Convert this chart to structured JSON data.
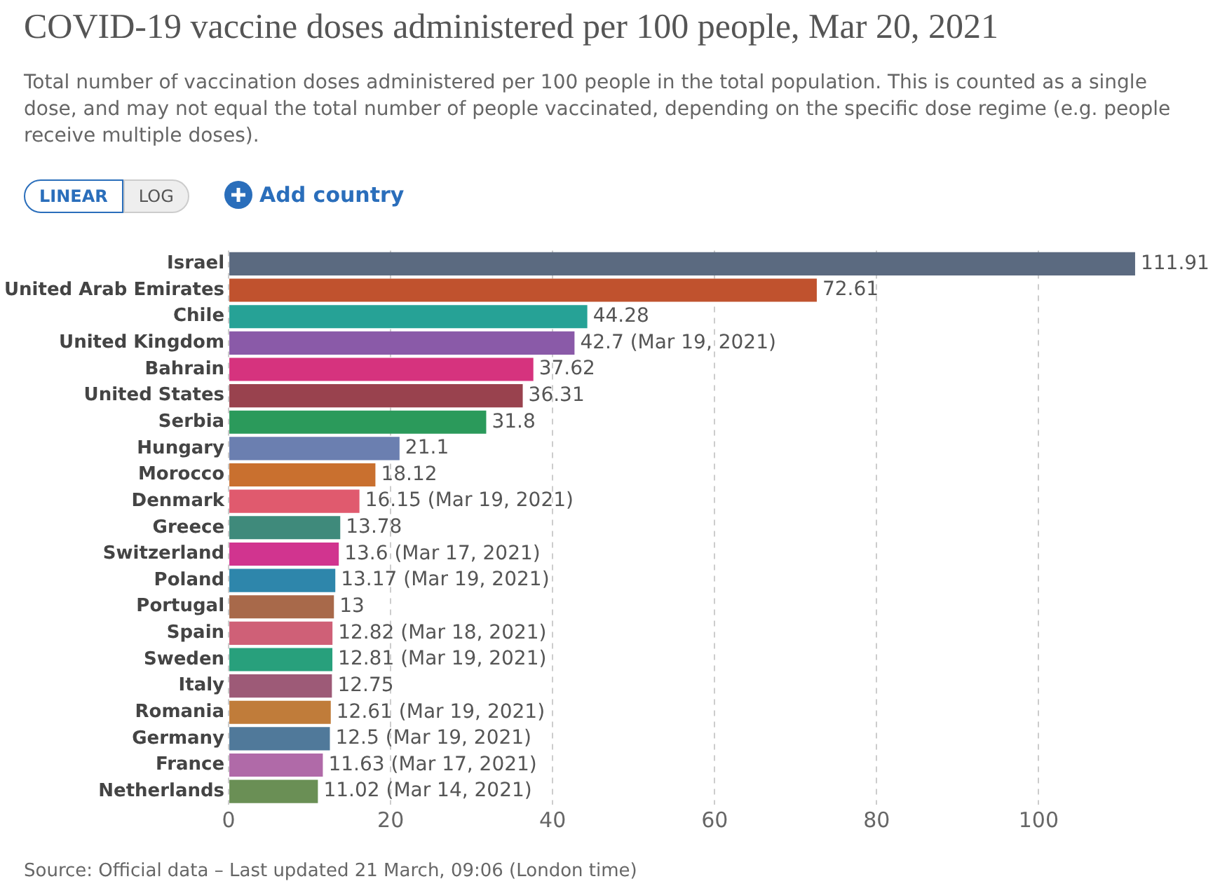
{
  "chart_data": {
    "type": "bar",
    "orientation": "horizontal",
    "title": "COVID-19 vaccine doses administered per 100 people, Mar 20, 2021",
    "subtitle": "Total number of vaccination doses administered per 100 people in the total population. This is counted as a single dose, and may not equal the total number of people vaccinated, depending on the specific dose regime (e.g. people receive multiple doses).",
    "categories": [
      "Israel",
      "United Arab Emirates",
      "Chile",
      "United Kingdom",
      "Bahrain",
      "United States",
      "Serbia",
      "Hungary",
      "Morocco",
      "Denmark",
      "Greece",
      "Switzerland",
      "Poland",
      "Portugal",
      "Spain",
      "Sweden",
      "Italy",
      "Romania",
      "Germany",
      "France",
      "Netherlands"
    ],
    "values": [
      111.91,
      72.61,
      44.28,
      42.7,
      37.62,
      36.31,
      31.8,
      21.1,
      18.12,
      16.15,
      13.78,
      13.6,
      13.17,
      13,
      12.82,
      12.81,
      12.75,
      12.61,
      12.5,
      11.63,
      11.02
    ],
    "value_labels": [
      "111.91",
      "72.61",
      "44.28",
      "42.7 (Mar 19, 2021)",
      "37.62",
      "36.31",
      "31.8",
      "21.1",
      "18.12",
      "16.15 (Mar 19, 2021)",
      "13.78",
      "13.6 (Mar 17, 2021)",
      "13.17 (Mar 19, 2021)",
      "13",
      "12.82 (Mar 18, 2021)",
      "12.81 (Mar 19, 2021)",
      "12.75",
      "12.61 (Mar 19, 2021)",
      "12.5 (Mar 19, 2021)",
      "11.63 (Mar 17, 2021)",
      "11.02 (Mar 14, 2021)"
    ],
    "colors": [
      "#5b6a80",
      "#c0522e",
      "#26a296",
      "#8a5aa8",
      "#d6337e",
      "#99424e",
      "#2b9a5b",
      "#6b7fb0",
      "#c9702f",
      "#e05a6e",
      "#3f8a7b",
      "#d1348f",
      "#2e86ab",
      "#a8694a",
      "#cf6077",
      "#28a07c",
      "#9d5a77",
      "#c07c3a",
      "#50799a",
      "#b06aa8",
      "#6a8f55"
    ],
    "xlim": [
      0,
      112
    ],
    "xticks": [
      0,
      20,
      40,
      60,
      80,
      100
    ],
    "grid": "x",
    "legend": false,
    "annotations": [
      "LINEAR",
      "LOG",
      "Add country",
      "Source: Official data – Last updated 21 March, 09:06 (London time)"
    ]
  }
}
